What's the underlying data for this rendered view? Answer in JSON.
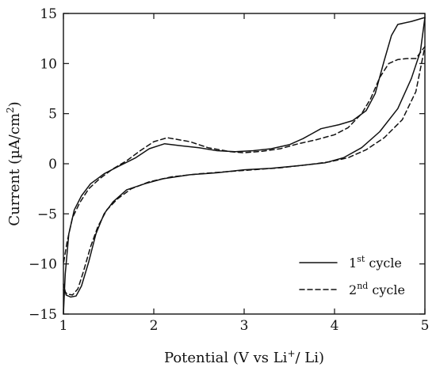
{
  "chart_data": {
    "type": "line",
    "title": "",
    "xlabel": "Potential (V vs Li",
    "xlabel_sup": "+",
    "xlabel_tail": "/ Li)",
    "ylabel": "Current (µA/cm",
    "ylabel_sup": "2",
    "ylabel_tail": ")",
    "xlim": [
      1,
      5
    ],
    "ylim": [
      -15,
      15
    ],
    "xticks": [
      1,
      2,
      3,
      4,
      5
    ],
    "yticks": [
      -15,
      -10,
      -5,
      0,
      5,
      10,
      15
    ],
    "xtick_labels": [
      "1",
      "2",
      "3",
      "4",
      "5"
    ],
    "ytick_labels": [
      "−15",
      "−10",
      "−5",
      "0",
      "5",
      "10",
      "15"
    ],
    "legend_position": "bottom-right",
    "grid": false,
    "series": [
      {
        "name": "1st cycle",
        "name_base": "1",
        "name_sup": "st",
        "name_tail": " cycle",
        "style": "solid",
        "color": "#111111",
        "points": [
          [
            1.0,
            -12.0
          ],
          [
            1.03,
            -13.1
          ],
          [
            1.08,
            -13.3
          ],
          [
            1.14,
            -13.2
          ],
          [
            1.2,
            -12.2
          ],
          [
            1.28,
            -9.8
          ],
          [
            1.36,
            -7.0
          ],
          [
            1.45,
            -5.0
          ],
          [
            1.55,
            -3.8
          ],
          [
            1.7,
            -2.6
          ],
          [
            1.9,
            -2.0
          ],
          [
            2.1,
            -1.5
          ],
          [
            2.4,
            -1.1
          ],
          [
            2.7,
            -0.9
          ],
          [
            3.0,
            -0.6
          ],
          [
            3.3,
            -0.45
          ],
          [
            3.6,
            -0.2
          ],
          [
            3.9,
            0.1
          ],
          [
            4.1,
            0.6
          ],
          [
            4.3,
            1.6
          ],
          [
            4.5,
            3.2
          ],
          [
            4.7,
            5.5
          ],
          [
            4.85,
            8.5
          ],
          [
            4.95,
            11.2
          ],
          [
            5.0,
            14.6
          ],
          [
            4.85,
            14.2
          ],
          [
            4.7,
            13.9
          ],
          [
            4.63,
            12.8
          ],
          [
            4.55,
            10.3
          ],
          [
            4.45,
            7.0
          ],
          [
            4.35,
            5.3
          ],
          [
            4.2,
            4.3
          ],
          [
            4.05,
            3.9
          ],
          [
            3.85,
            3.5
          ],
          [
            3.75,
            3.0
          ],
          [
            3.65,
            2.5
          ],
          [
            3.5,
            1.9
          ],
          [
            3.3,
            1.5
          ],
          [
            3.1,
            1.3
          ],
          [
            2.9,
            1.2
          ],
          [
            2.7,
            1.3
          ],
          [
            2.5,
            1.6
          ],
          [
            2.3,
            1.8
          ],
          [
            2.12,
            2.0
          ],
          [
            1.95,
            1.5
          ],
          [
            1.8,
            0.6
          ],
          [
            1.6,
            -0.3
          ],
          [
            1.45,
            -1.0
          ],
          [
            1.3,
            -2.0
          ],
          [
            1.2,
            -3.2
          ],
          [
            1.12,
            -4.6
          ],
          [
            1.06,
            -7.0
          ],
          [
            1.02,
            -11.0
          ],
          [
            1.0,
            -15.0
          ]
        ]
      },
      {
        "name": "2nd cycle",
        "name_base": "2",
        "name_sup": "nd",
        "name_tail": " cycle",
        "style": "dashed",
        "color": "#111111",
        "points": [
          [
            1.0,
            -12.6
          ],
          [
            1.04,
            -13.0
          ],
          [
            1.1,
            -13.1
          ],
          [
            1.16,
            -12.5
          ],
          [
            1.22,
            -10.8
          ],
          [
            1.3,
            -8.3
          ],
          [
            1.38,
            -6.3
          ],
          [
            1.48,
            -4.6
          ],
          [
            1.6,
            -3.5
          ],
          [
            1.75,
            -2.5
          ],
          [
            1.95,
            -1.8
          ],
          [
            2.2,
            -1.3
          ],
          [
            2.5,
            -1.0
          ],
          [
            2.8,
            -0.8
          ],
          [
            3.1,
            -0.6
          ],
          [
            3.4,
            -0.4
          ],
          [
            3.7,
            -0.1
          ],
          [
            3.95,
            0.2
          ],
          [
            4.15,
            0.6
          ],
          [
            4.35,
            1.4
          ],
          [
            4.55,
            2.6
          ],
          [
            4.75,
            4.4
          ],
          [
            4.9,
            7.2
          ],
          [
            5.0,
            11.7
          ],
          [
            4.9,
            10.5
          ],
          [
            4.8,
            10.5
          ],
          [
            4.7,
            10.4
          ],
          [
            4.6,
            10.0
          ],
          [
            4.5,
            8.6
          ],
          [
            4.4,
            6.5
          ],
          [
            4.3,
            5.0
          ],
          [
            4.15,
            3.6
          ],
          [
            4.0,
            2.9
          ],
          [
            3.8,
            2.4
          ],
          [
            3.6,
            2.0
          ],
          [
            3.4,
            1.5
          ],
          [
            3.2,
            1.25
          ],
          [
            3.0,
            1.1
          ],
          [
            2.85,
            1.2
          ],
          [
            2.6,
            1.6
          ],
          [
            2.4,
            2.2
          ],
          [
            2.15,
            2.6
          ],
          [
            2.0,
            2.2
          ],
          [
            1.85,
            1.3
          ],
          [
            1.7,
            0.3
          ],
          [
            1.55,
            -0.5
          ],
          [
            1.4,
            -1.5
          ],
          [
            1.28,
            -2.5
          ],
          [
            1.18,
            -3.9
          ],
          [
            1.1,
            -5.4
          ],
          [
            1.04,
            -7.8
          ],
          [
            1.0,
            -10.0
          ]
        ]
      }
    ]
  }
}
